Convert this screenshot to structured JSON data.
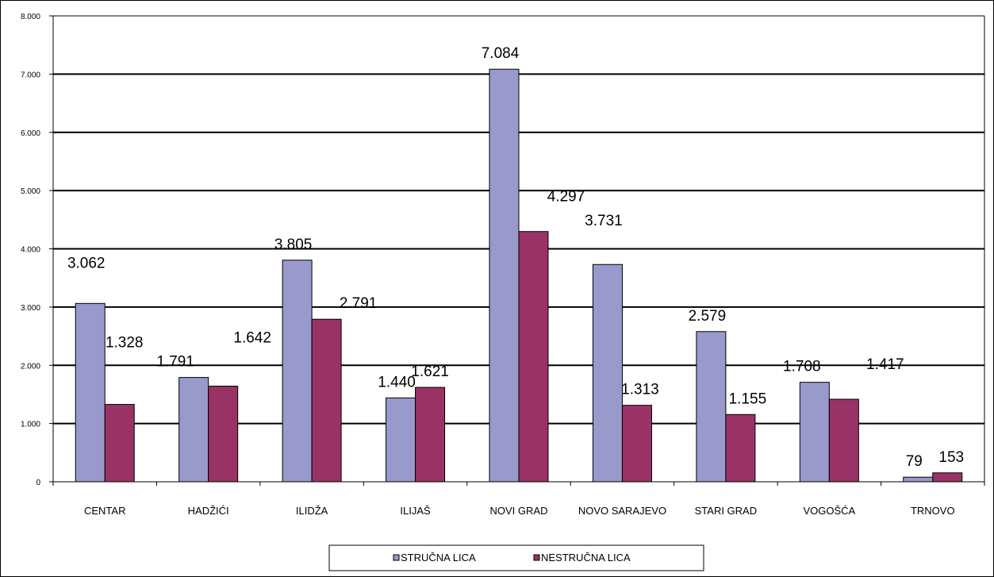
{
  "chart_data": {
    "type": "bar",
    "categories": [
      "CENTAR",
      "HADŽIĆI",
      "ILIDŽA",
      "ILIJAŠ",
      "NOVI GRAD",
      "NOVO SARAJEVO",
      "STARI GRAD",
      "VOGOŠĆA",
      "TRNOVO"
    ],
    "series": [
      {
        "name": "STRUČNA LICA",
        "values": [
          3062,
          1791,
          3805,
          1440,
          7084,
          3731,
          2579,
          1708,
          79
        ],
        "labels": [
          "3.062",
          "1.791",
          "3.805",
          "1.440",
          "7.084",
          "3.731",
          "2.579",
          "1.708",
          "79"
        ],
        "color": "#9999CC"
      },
      {
        "name": "NESTRUČNA LICA",
        "values": [
          1328,
          1642,
          2791,
          1621,
          4297,
          1313,
          1155,
          1417,
          153
        ],
        "labels": [
          "1.328",
          "1.642",
          "2.791",
          "1.621",
          "4.297",
          "1.313",
          "1.155",
          "1.417",
          "153"
        ],
        "color": "#993366"
      }
    ],
    "ylim": [
      0,
      8000
    ],
    "yticks": [
      0,
      1000,
      2000,
      3000,
      4000,
      5000,
      6000,
      7000,
      8000
    ],
    "ytick_labels": [
      "0",
      "1.000",
      "2.000",
      "3.000",
      "4.000",
      "5.000",
      "6.000",
      "7.000",
      "8.000"
    ],
    "grid": true,
    "legend_position": "bottom",
    "title": "",
    "xlabel": "",
    "ylabel": ""
  }
}
